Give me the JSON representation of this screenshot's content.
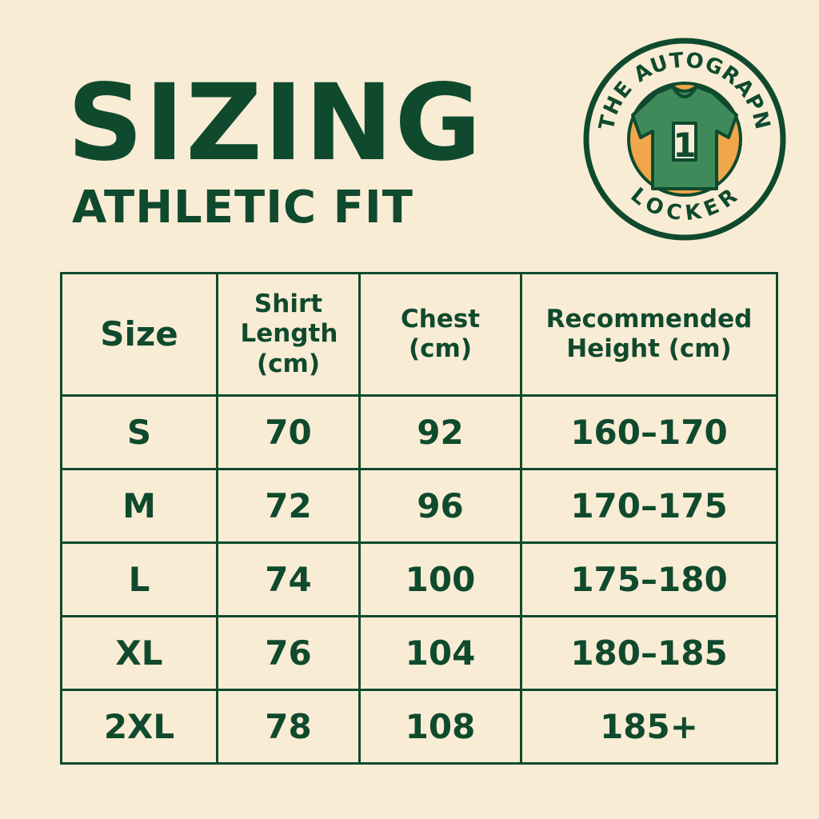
{
  "header": {
    "title": "SIZING",
    "subtitle": "ATHLETIC FIT"
  },
  "logo": {
    "top_text": "THE AUTOGRAPN",
    "bottom_text": "LOCKER",
    "jersey_number": "1",
    "colors": {
      "ring": "#0f4a2e",
      "jersey": "#3f8a5a",
      "accent": "#f0a64a"
    }
  },
  "table": {
    "headers": [
      "Size",
      "Shirt Length (cm)",
      "Chest (cm)",
      "Recommended Height (cm)"
    ],
    "rows": [
      [
        "S",
        "70",
        "92",
        "160–170"
      ],
      [
        "M",
        "72",
        "96",
        "170–175"
      ],
      [
        "L",
        "74",
        "100",
        "175–180"
      ],
      [
        "XL",
        "76",
        "104",
        "180–185"
      ],
      [
        "2XL",
        "78",
        "108",
        "185+"
      ]
    ]
  },
  "colors": {
    "background": "#f9ecd4",
    "primary": "#0f4a2e"
  }
}
